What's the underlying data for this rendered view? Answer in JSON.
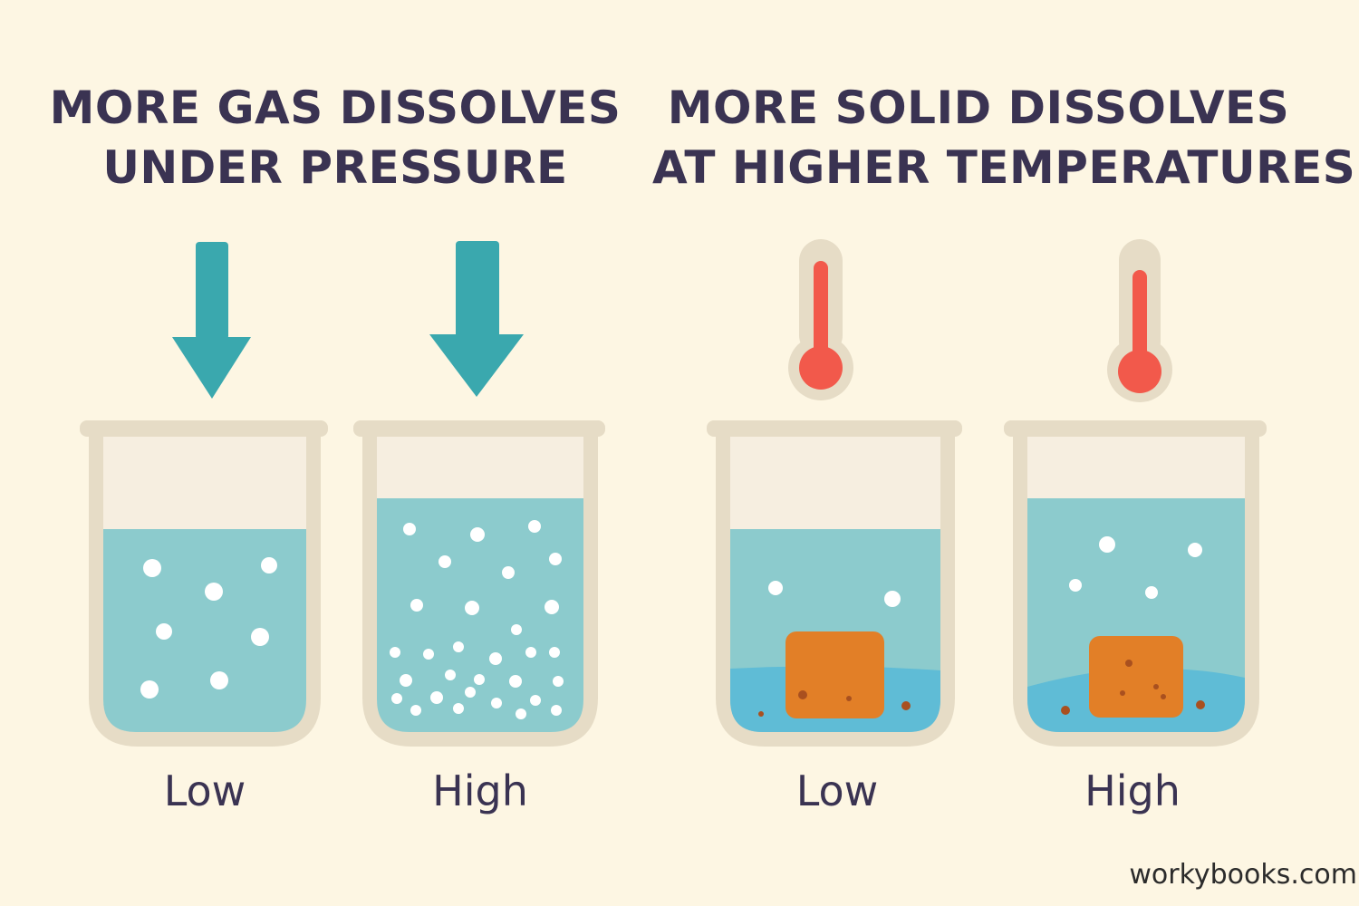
{
  "titles": {
    "gas": {
      "line1": "MORE GAS DISSOLVES",
      "line2": "UNDER PRESSURE"
    },
    "solid": {
      "line1": "MORE SOLID DISSOLVES",
      "line2": "AT HIGHER TEMPERATURES"
    }
  },
  "beakers": [
    {
      "label": "Low"
    },
    {
      "label": "High"
    },
    {
      "label": "Low"
    },
    {
      "label": "High"
    }
  ],
  "watermark": "workybooks.com",
  "colors": {
    "background": "#fdf6e3",
    "arrow": "#3aa8ae",
    "thermometer_liquid": "#f2594b",
    "water": "#8ccbcd",
    "water_bottom": "#5fbcd6",
    "beaker_glass": "#e6dcc6",
    "solid_block": "#e27f27",
    "text": "#3a3352"
  },
  "icons": [
    "down-arrow-icon",
    "thermometer-icon",
    "bubble-icon",
    "solid-cube-icon"
  ]
}
